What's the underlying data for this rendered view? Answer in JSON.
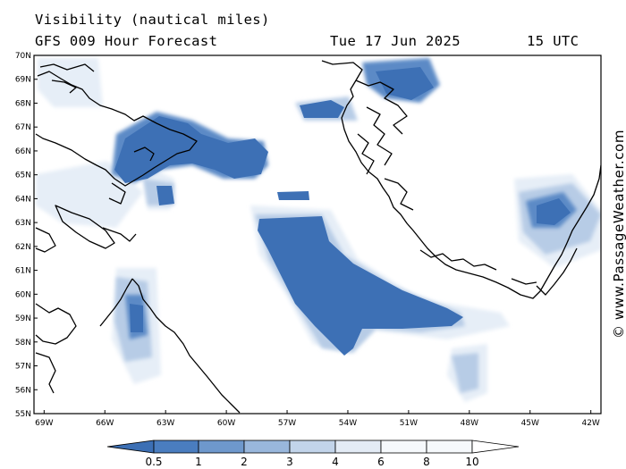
{
  "header": {
    "title": "Visibility (nautical miles)",
    "subtitle": "GFS 009 Hour Forecast",
    "date": "Tue 17 Jun 2025",
    "time": "15 UTC"
  },
  "watermark": "© www.PassageWeather.com",
  "map": {
    "lat_labels": [
      "70N",
      "69N",
      "68N",
      "67N",
      "66N",
      "65N",
      "64N",
      "63N",
      "62N",
      "61N",
      "60N",
      "59N",
      "58N",
      "57N",
      "56N",
      "55N"
    ],
    "lon_labels": [
      "69W",
      "66W",
      "63W",
      "60W",
      "57W",
      "54W",
      "51W",
      "48W",
      "45W",
      "42W"
    ],
    "lat_range": [
      55,
      70
    ],
    "lon_range": [
      -69.5,
      -41.5
    ],
    "coastline_color": "#000000"
  },
  "colorbar": {
    "labels": [
      "0.5",
      "1",
      "2",
      "3",
      "4",
      "6",
      "8",
      "10"
    ],
    "colors": [
      "#3c6fb4",
      "#4a7dbf",
      "#6e98cc",
      "#99b7dc",
      "#c2d4ea",
      "#e3ebf5",
      "#f6f9fc"
    ],
    "units": "nautical miles"
  }
}
